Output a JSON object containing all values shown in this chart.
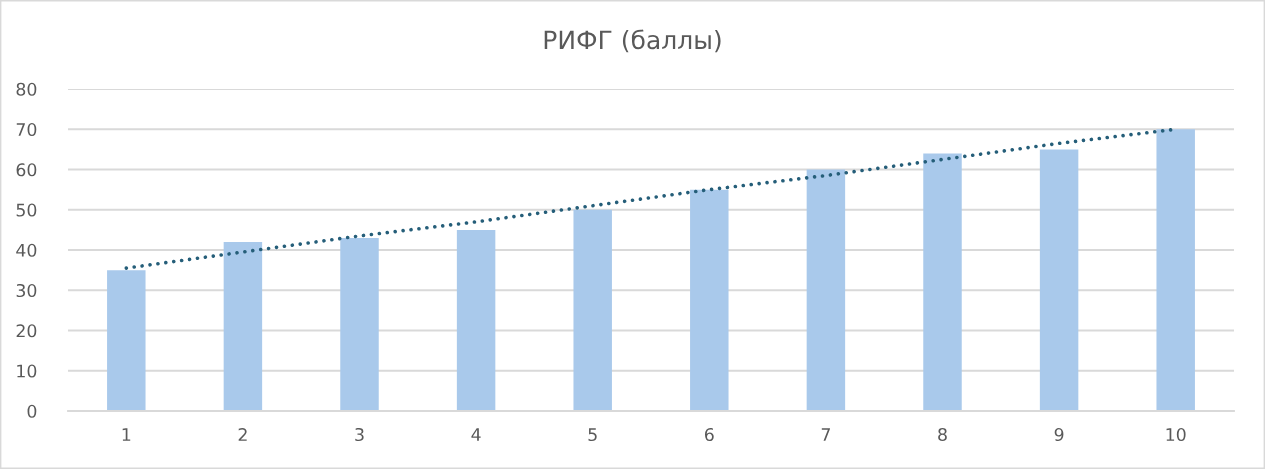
{
  "chart_data": {
    "type": "bar",
    "title": "РИФГ (баллы)",
    "categories": [
      "1",
      "2",
      "3",
      "4",
      "5",
      "6",
      "7",
      "8",
      "9",
      "10"
    ],
    "series": [
      {
        "color": "#a9c9eb",
        "values": [
          35,
          42,
          43,
          45,
          50,
          55,
          60,
          64,
          65,
          70
        ]
      },
      {
        "type": "line",
        "color": "#255e79",
        "line_style": "dotted",
        "values": [
          35.5,
          39.5,
          43.5,
          47,
          51,
          55,
          58.5,
          62.5,
          66.5,
          70
        ]
      }
    ],
    "ylim": [
      0,
      80
    ],
    "yticks": [
      0,
      10,
      20,
      30,
      40,
      50,
      60,
      70,
      80
    ],
    "grid": "y"
  }
}
